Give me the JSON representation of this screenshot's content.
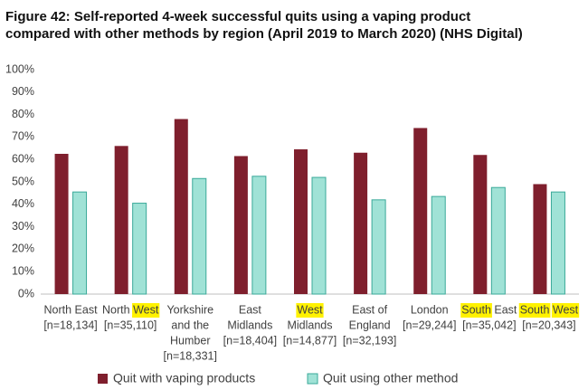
{
  "chart_data": {
    "type": "bar",
    "title": [
      "Figure 42: Self-reported 4-week successful quits using a vaping product",
      "compared with other methods by region (April 2019 to March 2020) (NHS Digital)"
    ],
    "categories": [
      [
        [
          {
            "text": "North East"
          }
        ],
        [
          {
            "text": "[n=18,134]"
          }
        ]
      ],
      [
        [
          {
            "text": "North "
          },
          {
            "text": "West",
            "highlight": true
          }
        ],
        [
          {
            "text": "[n=35,110]"
          }
        ]
      ],
      [
        [
          {
            "text": "Yorkshire"
          }
        ],
        [
          {
            "text": "and the"
          }
        ],
        [
          {
            "text": "Humber"
          }
        ],
        [
          {
            "text": "[n=18,331]"
          }
        ]
      ],
      [
        [
          {
            "text": "East"
          }
        ],
        [
          {
            "text": "Midlands"
          }
        ],
        [
          {
            "text": "[n=18,404]"
          }
        ]
      ],
      [
        [
          {
            "text": "West",
            "highlight": true
          }
        ],
        [
          {
            "text": "Midlands"
          }
        ],
        [
          {
            "text": "[n=14,877]"
          }
        ]
      ],
      [
        [
          {
            "text": "East of"
          }
        ],
        [
          {
            "text": "England"
          }
        ],
        [
          {
            "text": "[n=32,193]"
          }
        ]
      ],
      [
        [
          {
            "text": "London"
          }
        ],
        [
          {
            "text": "[n=29,244]"
          }
        ]
      ],
      [
        [
          {
            "text": "South",
            "highlight": true
          },
          {
            "text": " East"
          }
        ],
        [
          {
            "text": "[n=35,042]"
          }
        ]
      ],
      [
        [
          {
            "text": "South",
            "highlight": true
          },
          {
            "text": " "
          },
          {
            "text": "West",
            "highlight": true
          }
        ],
        [
          {
            "text": "[n=20,343]"
          }
        ]
      ]
    ],
    "series": [
      {
        "name": "Quit with vaping products",
        "color": "#7f1f2d",
        "values": [
          62.5,
          66,
          78,
          61.5,
          64.5,
          63,
          74,
          62,
          49
        ]
      },
      {
        "name": "Quit using other method",
        "color": "#a0e2d6",
        "stroke": "#3aa999",
        "values": [
          45.5,
          40.5,
          51.5,
          52.5,
          52,
          42,
          43.5,
          47.5,
          45.5
        ]
      }
    ],
    "ylim": [
      0,
      100
    ],
    "yticks": [
      {
        "value": 0,
        "label": "0%"
      },
      {
        "value": 10,
        "label": "10%"
      },
      {
        "value": 20,
        "label": "20%"
      },
      {
        "value": 30,
        "label": "30%"
      },
      {
        "value": 40,
        "label": "40%"
      },
      {
        "value": 50,
        "label": "50%"
      },
      {
        "value": 60,
        "label": "60%"
      },
      {
        "value": 70,
        "label": "70%"
      },
      {
        "value": 80,
        "label": "80%"
      },
      {
        "value": 90,
        "label": "90%"
      },
      {
        "value": 100,
        "label": "100%"
      }
    ],
    "highlight_color": "#fff200",
    "grid": false
  }
}
